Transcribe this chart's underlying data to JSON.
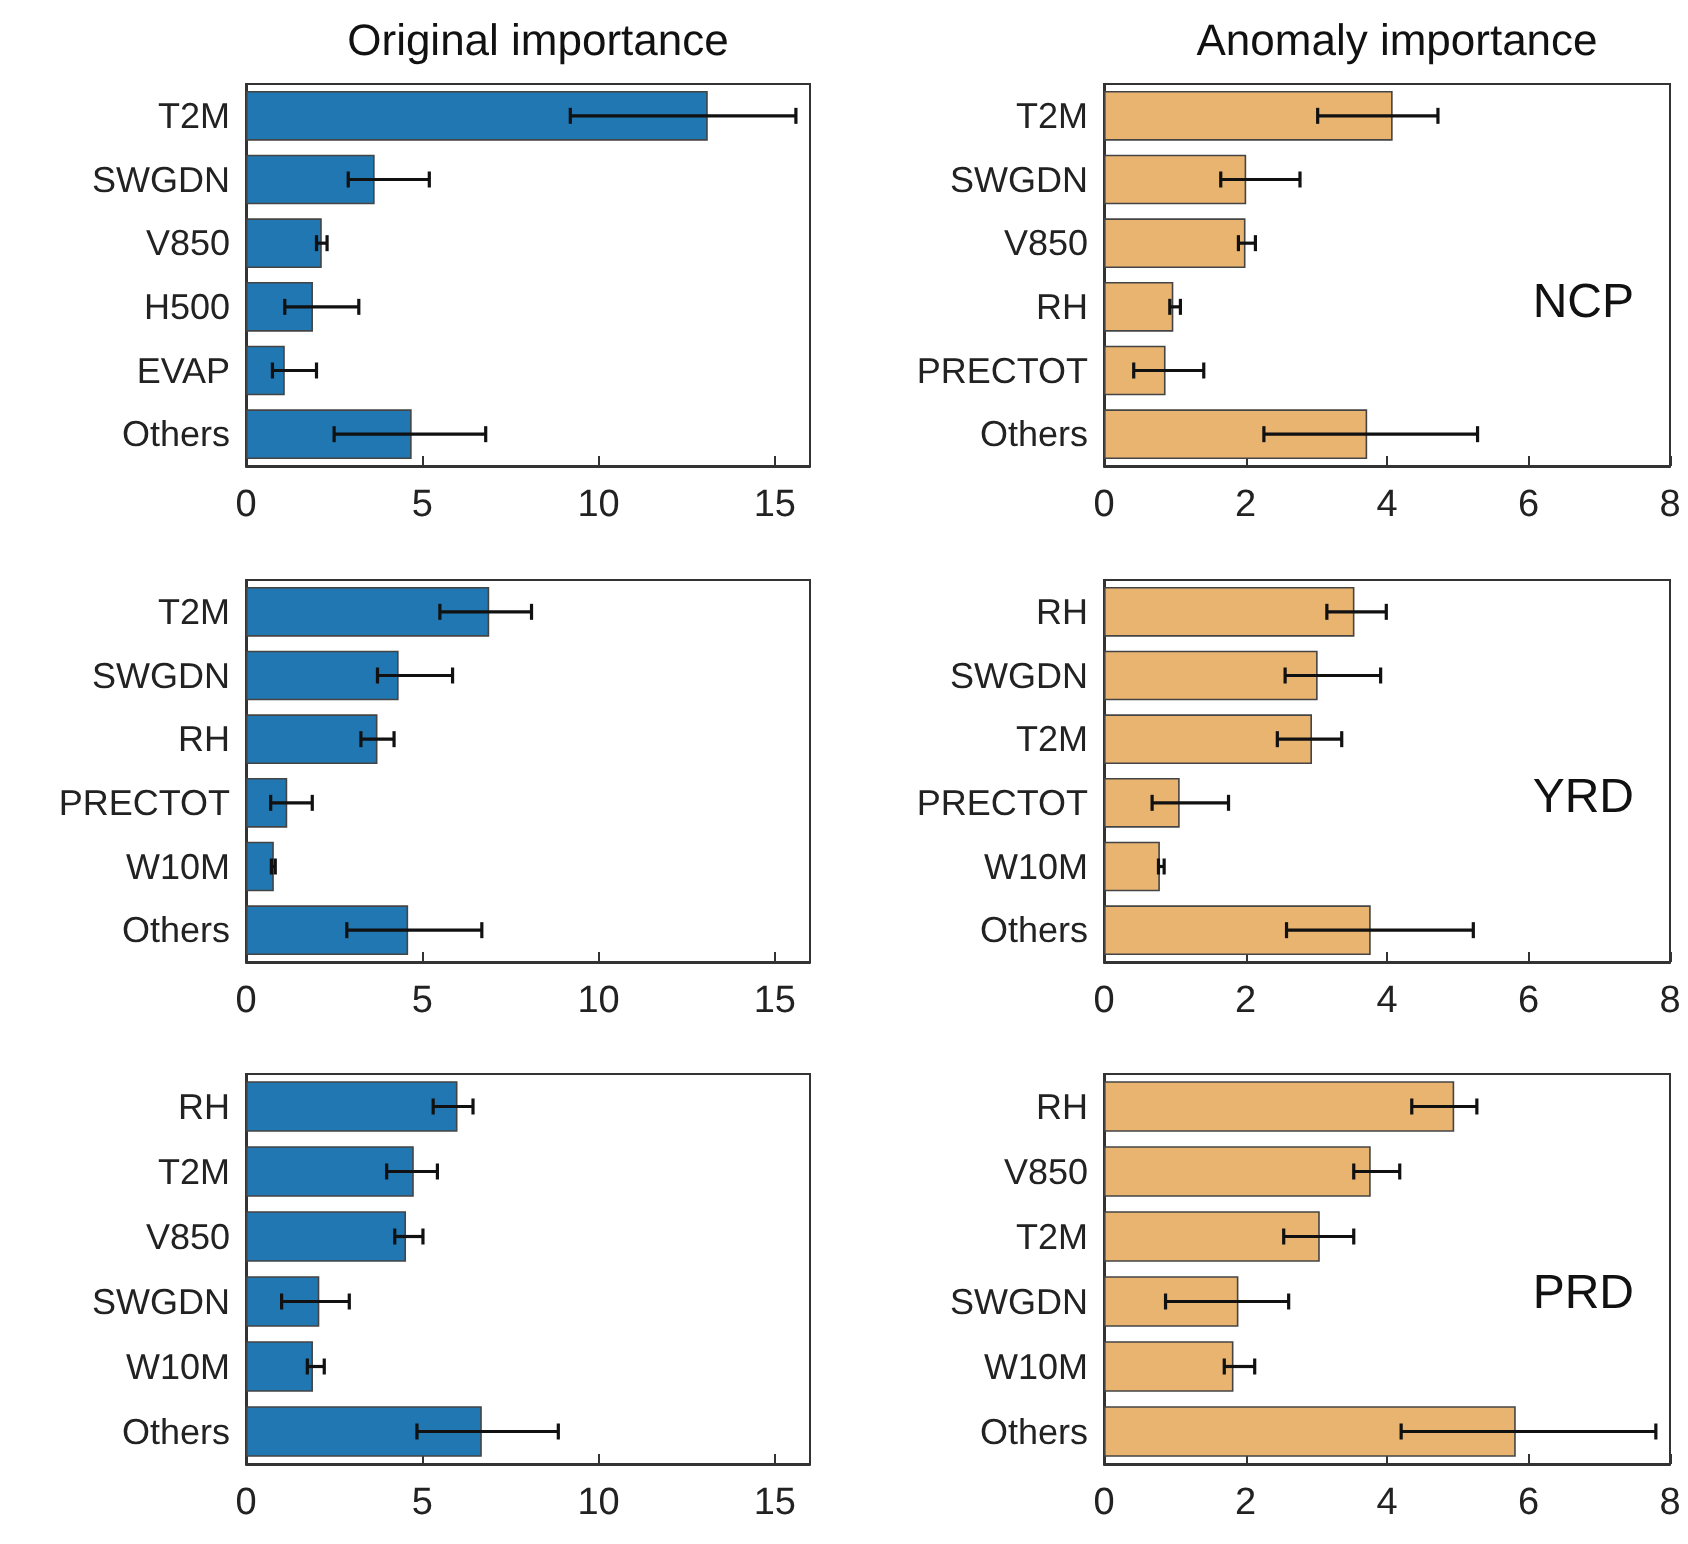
{
  "chart_data": [
    {
      "type": "bar",
      "orientation": "horizontal",
      "title": "Original importance",
      "color": "#2077b1",
      "categories": [
        "T2M",
        "SWGDN",
        "V850",
        "H500",
        "EVAP",
        "Others"
      ],
      "values": [
        13.1,
        3.65,
        2.15,
        1.9,
        1.1,
        4.7
      ],
      "errors": [
        [
          9.2,
          15.6
        ],
        [
          2.9,
          5.2
        ],
        [
          2.0,
          2.3
        ],
        [
          1.1,
          3.2
        ],
        [
          0.75,
          2.0
        ],
        [
          2.5,
          6.8
        ]
      ],
      "xlim": [
        0,
        16
      ],
      "xticks": [
        0,
        5,
        10,
        15
      ]
    },
    {
      "type": "bar",
      "orientation": "horizontal",
      "title": "Anomaly importance",
      "color": "#e8b470",
      "categories": [
        "T2M",
        "SWGDN",
        "V850",
        "RH",
        "PRECTOT",
        "Others"
      ],
      "values": [
        4.08,
        2.01,
        2.0,
        0.98,
        0.87,
        3.72
      ],
      "errors": [
        [
          3.02,
          4.72
        ],
        [
          1.65,
          2.77
        ],
        [
          1.9,
          2.14
        ],
        [
          0.93,
          1.08
        ],
        [
          0.42,
          1.41
        ],
        [
          2.26,
          5.28
        ]
      ],
      "xlim": [
        0,
        8
      ],
      "xticks": [
        0,
        2,
        4,
        6,
        8
      ],
      "annotations": [
        "NCP"
      ]
    },
    {
      "type": "bar",
      "orientation": "horizontal",
      "color": "#2077b1",
      "categories": [
        "T2M",
        "SWGDN",
        "RH",
        "PRECTOT",
        "W10M",
        "Others"
      ],
      "values": [
        6.9,
        4.33,
        3.73,
        1.17,
        0.79,
        4.6
      ],
      "errors": [
        [
          5.5,
          8.1
        ],
        [
          3.73,
          5.86
        ],
        [
          3.26,
          4.2
        ],
        [
          0.7,
          1.88
        ],
        [
          0.72,
          0.83
        ],
        [
          2.86,
          6.69
        ]
      ],
      "xlim": [
        0,
        16
      ],
      "xticks": [
        0,
        5,
        10,
        15
      ]
    },
    {
      "type": "bar",
      "orientation": "horizontal",
      "color": "#e8b470",
      "categories": [
        "RH",
        "SWGDN",
        "T2M",
        "PRECTOT",
        "W10M",
        "Others"
      ],
      "values": [
        3.54,
        3.02,
        2.94,
        1.07,
        0.79,
        3.77
      ],
      "errors": [
        [
          3.15,
          3.99
        ],
        [
          2.56,
          3.91
        ],
        [
          2.45,
          3.36
        ],
        [
          0.68,
          1.76
        ],
        [
          0.77,
          0.85
        ],
        [
          2.58,
          5.22
        ]
      ],
      "xlim": [
        0,
        8
      ],
      "xticks": [
        0,
        2,
        4,
        6,
        8
      ],
      "annotations": [
        "YRD"
      ]
    },
    {
      "type": "bar",
      "orientation": "horizontal",
      "color": "#2077b1",
      "categories": [
        "RH",
        "T2M",
        "V850",
        "SWGDN",
        "W10M",
        "Others"
      ],
      "values": [
        6.0,
        4.76,
        4.54,
        2.08,
        1.9,
        6.69
      ],
      "errors": [
        [
          5.31,
          6.44
        ],
        [
          3.99,
          5.43
        ],
        [
          4.22,
          5.02
        ],
        [
          1.01,
          2.93
        ],
        [
          1.74,
          2.22
        ],
        [
          4.85,
          8.86
        ]
      ],
      "xlim": [
        0,
        16
      ],
      "xticks": [
        0,
        5,
        10,
        15
      ]
    },
    {
      "type": "bar",
      "orientation": "horizontal",
      "color": "#e8b470",
      "categories": [
        "RH",
        "V850",
        "T2M",
        "SWGDN",
        "W10M",
        "Others"
      ],
      "values": [
        4.95,
        3.77,
        3.05,
        1.9,
        1.83,
        5.82
      ],
      "errors": [
        [
          4.35,
          5.27
        ],
        [
          3.53,
          4.18
        ],
        [
          2.54,
          3.53
        ],
        [
          0.87,
          2.61
        ],
        [
          1.7,
          2.13
        ],
        [
          4.2,
          7.8
        ]
      ],
      "xlim": [
        0,
        8
      ],
      "xticks": [
        0,
        2,
        4,
        6,
        8
      ],
      "annotations": [
        "PRD"
      ]
    }
  ]
}
